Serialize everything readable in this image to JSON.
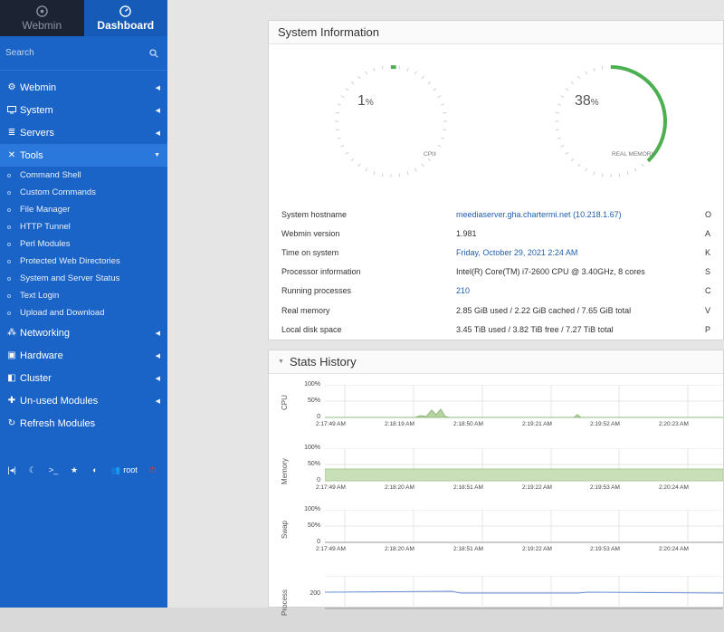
{
  "switcher": {
    "webmin": "Webmin",
    "dashboard": "Dashboard"
  },
  "search": {
    "placeholder": "Search"
  },
  "menu": [
    {
      "label": "Webmin",
      "icon": "gear-icon"
    },
    {
      "label": "System",
      "icon": "monitor-icon"
    },
    {
      "label": "Servers",
      "icon": "server-icon"
    },
    {
      "label": "Tools",
      "icon": "tools-icon"
    },
    {
      "label": "Networking",
      "icon": "network-icon"
    },
    {
      "label": "Hardware",
      "icon": "hard-drive-icon"
    },
    {
      "label": "Cluster",
      "icon": "cluster-icon"
    },
    {
      "label": "Un-used Modules",
      "icon": "puzzle-icon"
    },
    {
      "label": "Refresh Modules",
      "icon": "refresh-icon"
    }
  ],
  "tools_sub": [
    "Command Shell",
    "Custom Commands",
    "File Manager",
    "HTTP Tunnel",
    "Perl Modules",
    "Protected Web Directories",
    "System and Server Status",
    "Text Login",
    "Upload and Download"
  ],
  "bottom": {
    "user": "root"
  },
  "sysinfo": {
    "title": "System Information",
    "cpu": {
      "value": "1",
      "unit": "%",
      "label": "CPU",
      "percent": 1
    },
    "memory": {
      "value": "38",
      "unit": "%",
      "label": "REAL MEMORY",
      "percent": 38
    },
    "rows": [
      {
        "k": "System hostname",
        "v": "meediaserver.gha.chartermi.net (10.218.1.67)",
        "link": true,
        "edge": "O"
      },
      {
        "k": "Webmin version",
        "v": "1.981",
        "link": false,
        "edge": "A"
      },
      {
        "k": "Time on system",
        "v": "Friday, October 29, 2021 2:24 AM",
        "link": true,
        "edge": "K"
      },
      {
        "k": "Processor information",
        "v": "Intel(R) Core(TM) i7-2600 CPU @ 3.40GHz, 8 cores",
        "link": false,
        "edge": "S"
      },
      {
        "k": "Running processes",
        "v": "210",
        "link": true,
        "edge": "C"
      },
      {
        "k": "Real memory",
        "v": "2.85 GiB used / 2.22 GiB cached / 7.65 GiB total",
        "link": false,
        "edge": "V"
      },
      {
        "k": "Local disk space",
        "v": "3.45 TiB used / 3.82 TiB free / 7.27 TiB total",
        "link": false,
        "edge": "P"
      }
    ]
  },
  "stats": {
    "title": "Stats History",
    "charts": [
      {
        "ylabel": "CPU",
        "yticks": [
          "100%",
          "50%",
          "0"
        ],
        "xticks": [
          "2:17:49 AM",
          "2:18:19 AM",
          "2:18:50 AM",
          "2:19:21 AM",
          "2:19:52 AM",
          "2:20:23 AM"
        ]
      },
      {
        "ylabel": "Memory",
        "yticks": [
          "100%",
          "50%",
          "0"
        ],
        "xticks": [
          "2:17:49 AM",
          "2:18:20 AM",
          "2:18:51 AM",
          "2:19:22 AM",
          "2:19:53 AM",
          "2:20:24 AM"
        ]
      },
      {
        "ylabel": "Swap",
        "yticks": [
          "100%",
          "50%",
          "0"
        ],
        "xticks": [
          "2:17:49 AM",
          "2:18:20 AM",
          "2:18:51 AM",
          "2:19:22 AM",
          "2:19:53 AM",
          "2:20:24 AM"
        ]
      },
      {
        "ylabel": "Process",
        "yticks": [
          "200"
        ],
        "xticks": []
      }
    ]
  },
  "colors": {
    "sidebar": "#1a63c7",
    "accent_green": "#4caf50",
    "link": "#1f5fae"
  }
}
